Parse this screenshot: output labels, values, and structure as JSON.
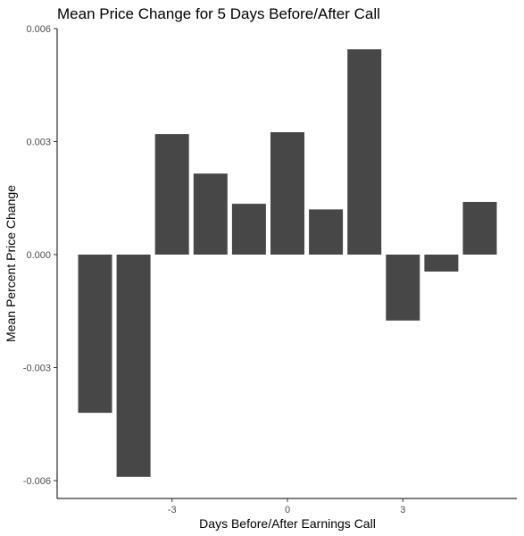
{
  "chart_data": {
    "type": "bar",
    "title": "Mean Price Change for 5 Days Before/After Call",
    "xlabel": "Days Before/After Earnings Call",
    "ylabel": "Mean Percent Price Change",
    "categories": [
      -5,
      -4,
      -3,
      -2,
      -1,
      0,
      1,
      2,
      3,
      4,
      5
    ],
    "values": [
      -0.0042,
      -0.0059,
      0.0032,
      0.00215,
      0.00135,
      0.00325,
      0.0012,
      0.00545,
      -0.00175,
      -0.00045,
      0.0014
    ],
    "ylim": [
      -0.0065,
      0.006
    ],
    "xlim": [
      -6,
      6
    ],
    "yticks": [
      -0.006,
      -0.003,
      0.0,
      0.003,
      0.006
    ],
    "ytick_labels": [
      "-0.006",
      "-0.003",
      "0.000",
      "0.003",
      "0.006"
    ],
    "xticks": [
      -3,
      0,
      3
    ],
    "xtick_labels": [
      "-3",
      "0",
      "3"
    ],
    "bar_color": "#474747",
    "grid": false,
    "legend": "none"
  }
}
